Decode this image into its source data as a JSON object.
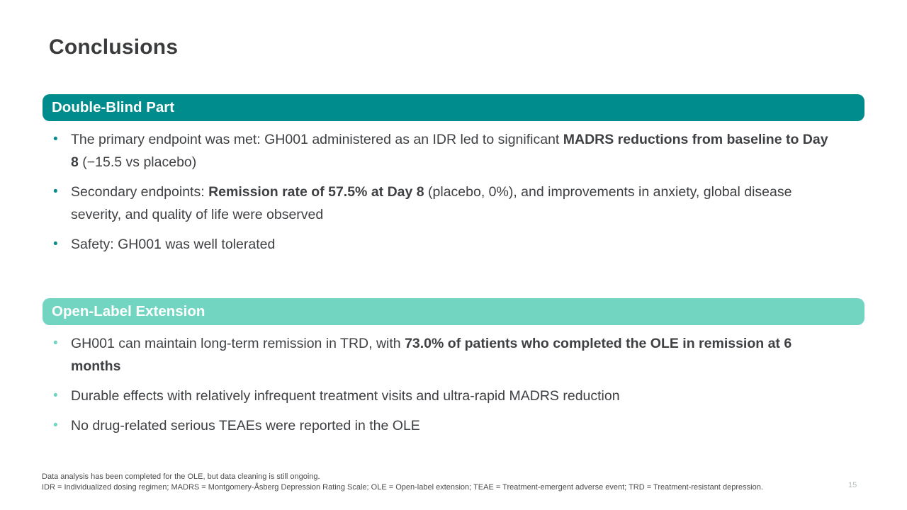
{
  "slide": {
    "title": "Conclusions",
    "bullet_glyph": "•",
    "page_number": "15",
    "colors": {
      "dark_teal": "#008b8c",
      "light_teal": "#72d5c1",
      "body_text": "#3e4043",
      "header_text": "#ffffff",
      "footnote_text": "#4a4a4a",
      "page_number_text": "#b7babd"
    },
    "sections": [
      {
        "header": "Double-Blind Part",
        "bullets": [
          {
            "segments": [
              {
                "text": "The primary endpoint was met: GH001 administered as an IDR led to significant ",
                "bold": false
              },
              {
                "text": "MADRS reductions from baseline to Day 8",
                "bold": true
              },
              {
                "text": " (−15.5 vs placebo)",
                "bold": false
              }
            ]
          },
          {
            "segments": [
              {
                "text": "Secondary endpoints: ",
                "bold": false
              },
              {
                "text": "Remission rate of 57.5% at Day 8",
                "bold": true
              },
              {
                "text": " (placebo, 0%), and improvements in anxiety, global disease severity, and quality of life were observed",
                "bold": false
              }
            ]
          },
          {
            "segments": [
              {
                "text": "Safety: GH001 was well tolerated",
                "bold": false
              }
            ]
          }
        ]
      },
      {
        "header": "Open-Label Extension",
        "bullets": [
          {
            "segments": [
              {
                "text": "GH001 can maintain long-term remission in TRD, with ",
                "bold": false
              },
              {
                "text": "73.0% of patients who completed the OLE in remission at 6 months",
                "bold": true
              }
            ]
          },
          {
            "segments": [
              {
                "text": "Durable effects with relatively infrequent treatment visits and ultra-rapid MADRS reduction",
                "bold": false
              }
            ]
          },
          {
            "segments": [
              {
                "text": "No drug-related serious TEAEs were reported in the OLE",
                "bold": false
              }
            ]
          }
        ]
      }
    ],
    "footnotes": [
      "Data analysis has been completed for the OLE, but data cleaning is still ongoing.",
      "IDR = Individualized dosing regimen; MADRS = Montgomery-Åsberg Depression Rating Scale; OLE = Open-label extension; TEAE = Treatment-emergent adverse event; TRD = Treatment-resistant depression."
    ]
  }
}
